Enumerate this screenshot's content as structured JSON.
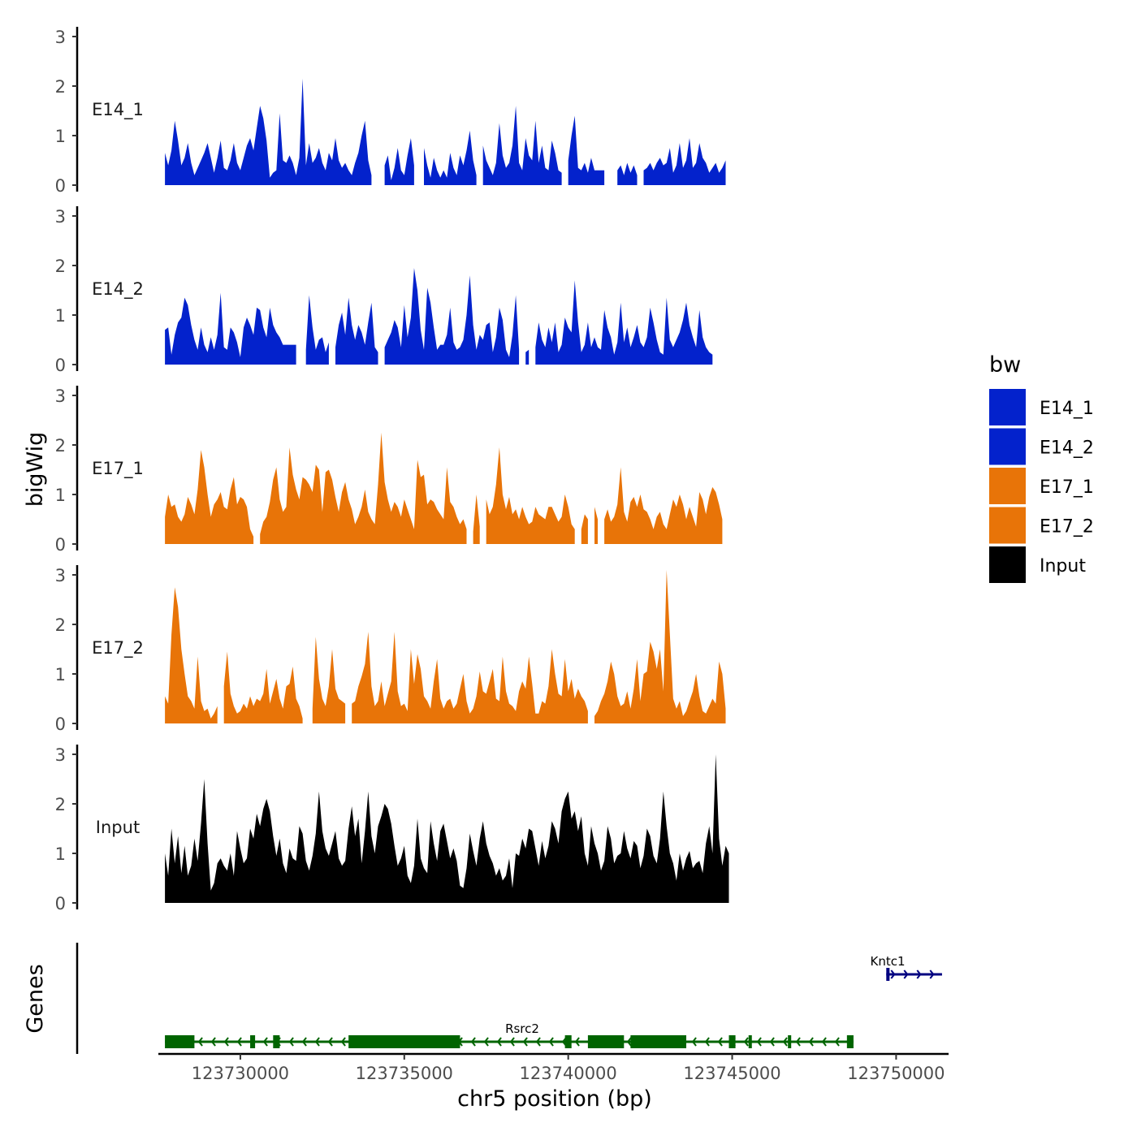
{
  "chart_data": {
    "type": "area",
    "xlabel": "chr5 position (bp)",
    "ylabel": "bigWig",
    "genes_label": "Genes",
    "xlim": [
      123727500,
      123751600
    ],
    "x_ticks": [
      123730000,
      123735000,
      123740000,
      123745000,
      123750000
    ],
    "x_tick_labels": [
      "123730000",
      "123735000",
      "123740000",
      "123745000",
      "123750000"
    ],
    "ylim": [
      0,
      3.2
    ],
    "y_ticks": [
      0,
      1,
      2,
      3
    ],
    "y_tick_labels": [
      "0",
      "1",
      "2",
      "3"
    ],
    "coverage_start": 123727700,
    "coverage_step": 100,
    "legend_title": "bw",
    "legend": [
      {
        "name": "E14_1",
        "color": "#0322CC"
      },
      {
        "name": "E14_2",
        "color": "#0322CC"
      },
      {
        "name": "E17_1",
        "color": "#E87408"
      },
      {
        "name": "E17_2",
        "color": "#E87408"
      },
      {
        "name": "Input",
        "color": "#000000"
      }
    ],
    "tracks": [
      {
        "name": "E14_1",
        "color": "#0322CC",
        "values": [
          0.65,
          0.4,
          0.7,
          1.3,
          0.9,
          0.4,
          0.55,
          0.85,
          0.45,
          0.2,
          0.35,
          0.5,
          0.65,
          0.85,
          0.55,
          0.25,
          0.55,
          0.9,
          0.35,
          0.3,
          0.5,
          0.85,
          0.45,
          0.3,
          0.55,
          0.8,
          0.95,
          0.7,
          1.15,
          1.6,
          1.35,
          0.9,
          0.15,
          0.25,
          0.3,
          1.45,
          0.5,
          0.45,
          0.6,
          0.45,
          0.2,
          0.55,
          2.15,
          0.4,
          0.85,
          0.45,
          0.55,
          0.75,
          0.45,
          0.3,
          0.65,
          0.5,
          0.95,
          0.5,
          0.35,
          0.45,
          0.3,
          0.2,
          0.45,
          0.65,
          1.0,
          1.3,
          0.5,
          0.2,
          null,
          null,
          null,
          0.4,
          0.6,
          0.1,
          0.35,
          0.75,
          0.3,
          0.2,
          0.6,
          0.95,
          0.4,
          null,
          null,
          0.75,
          0.4,
          0.15,
          0.55,
          0.3,
          0.15,
          0.3,
          0.15,
          0.65,
          0.35,
          0.2,
          0.6,
          0.4,
          0.7,
          1.1,
          0.5,
          0.2,
          null,
          0.8,
          0.5,
          0.35,
          0.2,
          0.45,
          1.25,
          0.6,
          0.35,
          0.45,
          0.8,
          1.6,
          0.45,
          0.3,
          0.95,
          0.6,
          0.5,
          1.3,
          0.45,
          0.8,
          0.35,
          0.3,
          0.9,
          0.65,
          0.3,
          0.25,
          null,
          0.5,
          1.0,
          1.4,
          0.35,
          0.3,
          0.45,
          0.25,
          0.55,
          0.3,
          0.3,
          0.3,
          0.3,
          null,
          null,
          null,
          0.3,
          0.4,
          0.2,
          0.45,
          0.25,
          0.4,
          0.2,
          null,
          0.3,
          0.35,
          0.45,
          0.3,
          0.45,
          0.55,
          0.4,
          0.45,
          0.75,
          0.25,
          0.4,
          0.85,
          0.35,
          0.5,
          0.95,
          0.35,
          0.45,
          0.85,
          0.55,
          0.45,
          0.25,
          0.35,
          0.45,
          0.25,
          0.35,
          0.5
        ]
      },
      {
        "name": "E14_2",
        "color": "#0322CC",
        "values": [
          0.7,
          0.75,
          0.2,
          0.6,
          0.85,
          0.95,
          1.35,
          1.2,
          0.8,
          0.5,
          0.3,
          0.75,
          0.4,
          0.25,
          0.55,
          0.3,
          0.6,
          1.45,
          0.35,
          0.3,
          0.75,
          0.65,
          0.45,
          0.15,
          0.75,
          0.95,
          0.8,
          0.6,
          1.15,
          1.1,
          0.75,
          0.55,
          1.15,
          0.8,
          0.65,
          0.55,
          0.4,
          0.4,
          0.4,
          0.4,
          0.4,
          null,
          null,
          0.3,
          1.4,
          0.75,
          0.3,
          0.5,
          0.55,
          0.25,
          0.45,
          null,
          0.35,
          0.8,
          1.05,
          0.6,
          1.35,
          0.8,
          0.5,
          0.8,
          0.65,
          0.4,
          0.85,
          1.25,
          0.35,
          0.25,
          null,
          0.35,
          0.5,
          0.65,
          0.9,
          0.75,
          0.35,
          1.2,
          0.55,
          0.95,
          1.95,
          1.5,
          0.7,
          0.3,
          1.55,
          1.25,
          0.75,
          0.3,
          0.4,
          0.4,
          0.6,
          1.15,
          0.45,
          0.3,
          0.35,
          0.5,
          1.0,
          1.8,
          0.8,
          0.3,
          0.6,
          0.5,
          0.8,
          0.85,
          0.25,
          0.55,
          1.15,
          0.9,
          0.3,
          0.15,
          0.6,
          1.4,
          0.3,
          null,
          0.25,
          0.3,
          null,
          0.35,
          0.85,
          0.5,
          0.35,
          0.75,
          0.45,
          0.85,
          0.25,
          0.4,
          0.95,
          0.75,
          0.65,
          1.7,
          0.85,
          0.25,
          0.4,
          0.85,
          0.35,
          0.55,
          0.35,
          0.3,
          1.1,
          0.75,
          0.55,
          0.2,
          0.45,
          1.25,
          0.45,
          0.75,
          0.35,
          0.55,
          0.8,
          0.45,
          0.35,
          0.55,
          1.15,
          0.85,
          0.5,
          0.25,
          0.2,
          1.35,
          0.5,
          0.35,
          0.5,
          0.65,
          0.9,
          1.25,
          0.8,
          0.55,
          0.35,
          1.1,
          0.55,
          0.35,
          0.25,
          0.2
        ]
      },
      {
        "name": "E17_1",
        "color": "#E87408",
        "values": [
          0.55,
          1.0,
          0.75,
          0.8,
          0.55,
          0.45,
          0.6,
          0.95,
          0.8,
          0.6,
          1.1,
          1.9,
          1.55,
          1.0,
          0.55,
          0.8,
          0.9,
          1.05,
          0.75,
          0.7,
          1.1,
          1.35,
          0.8,
          0.95,
          0.9,
          0.75,
          0.3,
          0.15,
          null,
          0.2,
          0.45,
          0.55,
          0.85,
          1.3,
          1.55,
          0.9,
          0.65,
          0.75,
          1.95,
          1.4,
          1.1,
          0.9,
          1.35,
          1.3,
          1.2,
          1.05,
          1.6,
          1.5,
          0.65,
          1.45,
          1.5,
          1.3,
          0.95,
          0.65,
          1.05,
          1.25,
          0.9,
          0.7,
          0.4,
          0.55,
          0.75,
          1.1,
          0.65,
          0.5,
          0.4,
          1.2,
          2.25,
          1.25,
          0.9,
          0.65,
          0.85,
          0.75,
          0.55,
          0.9,
          0.7,
          0.5,
          0.3,
          1.7,
          1.35,
          1.4,
          0.8,
          0.9,
          0.85,
          0.7,
          0.6,
          0.5,
          1.55,
          0.85,
          0.75,
          0.55,
          0.4,
          0.5,
          0.3,
          null,
          0.25,
          1.0,
          0.35,
          null,
          0.9,
          0.6,
          0.75,
          1.2,
          1.95,
          1.0,
          0.7,
          0.95,
          0.6,
          0.7,
          0.5,
          0.75,
          0.55,
          0.4,
          0.45,
          0.75,
          0.6,
          0.55,
          0.5,
          0.75,
          0.75,
          0.6,
          0.45,
          0.55,
          1.0,
          0.75,
          0.4,
          0.3,
          null,
          0.3,
          0.6,
          0.5,
          null,
          0.75,
          0.5,
          null,
          0.5,
          0.7,
          0.45,
          0.55,
          0.8,
          1.55,
          0.65,
          0.45,
          0.85,
          0.95,
          0.75,
          1.0,
          0.7,
          0.65,
          0.5,
          0.3,
          0.55,
          0.65,
          0.4,
          0.3,
          0.6,
          0.9,
          0.75,
          1.0,
          0.8,
          0.5,
          0.75,
          0.55,
          0.35,
          1.05,
          0.9,
          0.6,
          0.95,
          1.15,
          1.05,
          0.8,
          0.5
        ]
      },
      {
        "name": "E17_2",
        "color": "#E87408",
        "values": [
          0.55,
          0.4,
          1.8,
          2.75,
          2.35,
          1.5,
          1.0,
          0.55,
          0.45,
          0.3,
          1.35,
          0.45,
          0.25,
          0.3,
          0.1,
          0.2,
          0.35,
          null,
          0.75,
          1.45,
          0.6,
          0.35,
          0.2,
          0.25,
          0.4,
          0.3,
          0.55,
          0.35,
          0.5,
          0.45,
          0.6,
          1.1,
          0.4,
          0.65,
          0.9,
          0.5,
          0.3,
          0.75,
          0.8,
          1.15,
          0.5,
          0.35,
          0.1,
          null,
          null,
          0.3,
          1.75,
          0.9,
          0.5,
          0.35,
          0.75,
          1.5,
          0.7,
          0.5,
          0.45,
          0.4,
          null,
          0.4,
          0.45,
          0.75,
          0.95,
          1.2,
          1.85,
          0.75,
          0.35,
          0.45,
          0.85,
          0.35,
          0.6,
          0.85,
          1.85,
          0.65,
          0.35,
          0.4,
          0.25,
          1.5,
          0.8,
          1.4,
          1.1,
          0.55,
          0.45,
          0.3,
          0.85,
          1.3,
          0.5,
          0.3,
          0.45,
          0.5,
          0.3,
          0.4,
          0.7,
          1.0,
          0.45,
          0.2,
          0.3,
          0.55,
          1.05,
          0.65,
          0.6,
          0.85,
          1.1,
          0.5,
          0.45,
          1.35,
          0.65,
          0.4,
          0.35,
          0.25,
          0.65,
          0.85,
          0.7,
          1.35,
          0.8,
          0.2,
          0.2,
          0.45,
          0.4,
          0.75,
          1.5,
          1.0,
          0.6,
          0.55,
          1.3,
          0.65,
          0.9,
          0.5,
          0.7,
          0.55,
          0.45,
          0.25,
          null,
          0.15,
          0.25,
          0.45,
          0.6,
          0.85,
          1.25,
          1.0,
          0.55,
          0.35,
          0.4,
          0.65,
          0.3,
          0.7,
          1.3,
          0.45,
          1.0,
          1.05,
          1.65,
          1.45,
          1.1,
          1.5,
          0.65,
          3.1,
          1.8,
          0.5,
          0.3,
          0.45,
          0.15,
          0.25,
          0.45,
          0.65,
          1.0,
          0.55,
          0.25,
          0.2,
          0.35,
          0.5,
          0.4,
          1.25,
          1.0,
          0.3
        ]
      },
      {
        "name": "Input",
        "color": "#000000",
        "values": [
          1.0,
          0.55,
          1.5,
          0.8,
          1.35,
          0.6,
          1.15,
          0.55,
          0.75,
          1.3,
          0.85,
          1.6,
          2.5,
          1.2,
          0.25,
          0.4,
          0.8,
          0.9,
          0.75,
          0.65,
          1.0,
          0.55,
          1.45,
          1.1,
          0.8,
          0.9,
          1.5,
          1.3,
          1.8,
          1.55,
          1.9,
          2.1,
          1.85,
          1.35,
          0.95,
          1.3,
          0.8,
          0.6,
          1.1,
          0.9,
          0.85,
          1.55,
          1.4,
          0.85,
          0.65,
          0.95,
          1.4,
          2.25,
          1.45,
          1.1,
          0.95,
          1.2,
          1.45,
          0.9,
          0.75,
          0.85,
          1.5,
          1.95,
          1.35,
          1.7,
          0.8,
          1.45,
          2.25,
          1.35,
          1.0,
          1.55,
          1.75,
          2.0,
          1.9,
          1.6,
          1.15,
          0.75,
          0.9,
          1.15,
          0.55,
          0.4,
          0.75,
          1.7,
          0.9,
          0.7,
          0.6,
          1.65,
          1.2,
          0.85,
          1.45,
          1.6,
          1.25,
          0.9,
          1.1,
          0.85,
          0.35,
          0.3,
          0.7,
          1.4,
          1.05,
          0.75,
          1.3,
          1.65,
          1.2,
          0.95,
          0.8,
          0.55,
          0.7,
          0.45,
          0.55,
          0.9,
          0.3,
          1.0,
          0.95,
          1.3,
          1.1,
          1.5,
          1.45,
          1.1,
          0.75,
          1.25,
          0.9,
          1.15,
          1.65,
          1.5,
          1.2,
          1.85,
          2.1,
          2.25,
          1.7,
          1.85,
          1.45,
          1.75,
          1.0,
          0.75,
          1.55,
          1.2,
          1.0,
          0.65,
          0.85,
          1.55,
          1.3,
          0.8,
          0.95,
          1.0,
          1.45,
          1.1,
          0.9,
          1.25,
          1.15,
          0.7,
          0.95,
          1.5,
          1.35,
          0.95,
          0.8,
          1.3,
          2.25,
          1.55,
          1.0,
          0.8,
          0.45,
          1.0,
          0.65,
          0.9,
          1.05,
          0.7,
          0.8,
          0.85,
          0.6,
          1.2,
          1.55,
          1.0,
          3.0,
          1.3,
          0.75,
          1.15,
          1.0
        ]
      }
    ],
    "genes": [
      {
        "name": "Rsrc2",
        "strand": "-",
        "start": 123727700,
        "end": 123748700,
        "color": "#006400",
        "exons": [
          [
            123727700,
            123728600
          ],
          [
            123730300,
            123730450
          ],
          [
            123731000,
            123731200
          ],
          [
            123733300,
            123736700
          ],
          [
            123739900,
            123740100
          ],
          [
            123740600,
            123741700
          ],
          [
            123741900,
            123743600
          ],
          [
            123744900,
            123745100
          ],
          [
            123745500,
            123745600
          ],
          [
            123746700,
            123746800
          ],
          [
            123748500,
            123748700
          ]
        ]
      },
      {
        "name": "Kntc1",
        "strand": "+",
        "start": 123749700,
        "end": 123751400,
        "color": "#000080",
        "exons": [
          [
            123749700,
            123749800
          ]
        ]
      }
    ]
  }
}
